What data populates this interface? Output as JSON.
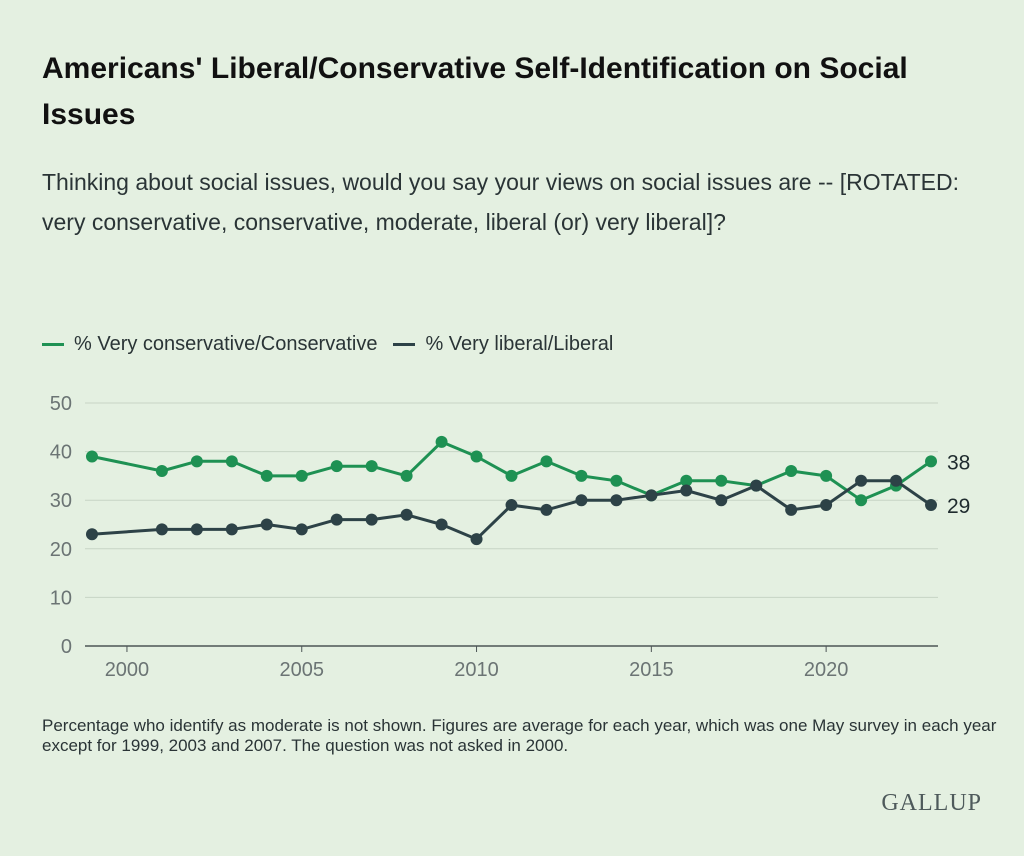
{
  "header": {
    "title": "Americans' Liberal/Conservative Self-Identification on Social Issues",
    "subtitle": "Thinking about social issues, would you say your views on social issues are -- [ROTATED: very conservative, conservative, moderate, liberal (or) very liberal]?"
  },
  "footer": {
    "note": "Percentage who identify as moderate is not shown. Figures are average for each year, which was one May survey in each year except for 1999, 2003 and 2007. The question was not asked in 2000.",
    "brand": "GALLUP"
  },
  "colors": {
    "conservative": "#1e9153",
    "liberal": "#2d4247",
    "grid": "#c7d4c5",
    "axis": "#4d5556",
    "tick": "#6b7474"
  },
  "chart_data": {
    "type": "line",
    "title": "Americans' Liberal/Conservative Self-Identification on Social Issues",
    "xlabel": "",
    "ylabel": "",
    "x": [
      1999,
      2001,
      2002,
      2003,
      2004,
      2005,
      2006,
      2007,
      2008,
      2009,
      2010,
      2011,
      2012,
      2013,
      2014,
      2015,
      2016,
      2017,
      2018,
      2019,
      2020,
      2021,
      2022,
      2023
    ],
    "xlim": [
      1998.8,
      2023.2
    ],
    "ylim": [
      0,
      50
    ],
    "xticks": [
      2000,
      2005,
      2010,
      2015,
      2020
    ],
    "yticks": [
      0,
      10,
      20,
      30,
      40,
      50
    ],
    "grid": true,
    "legend": "top-left",
    "series": [
      {
        "name": "% Very conservative/Conservative",
        "color": "#1e9153",
        "values": [
          39,
          36,
          38,
          38,
          35,
          35,
          37,
          37,
          35,
          42,
          39,
          35,
          38,
          35,
          34,
          31,
          34,
          34,
          33,
          36,
          35,
          30,
          33,
          38
        ],
        "end_label": "38"
      },
      {
        "name": "% Very liberal/Liberal",
        "color": "#2d4247",
        "values": [
          23,
          24,
          24,
          24,
          25,
          24,
          26,
          26,
          27,
          25,
          22,
          29,
          28,
          30,
          30,
          31,
          32,
          30,
          33,
          28,
          29,
          34,
          34,
          29
        ],
        "end_label": "29"
      }
    ]
  }
}
